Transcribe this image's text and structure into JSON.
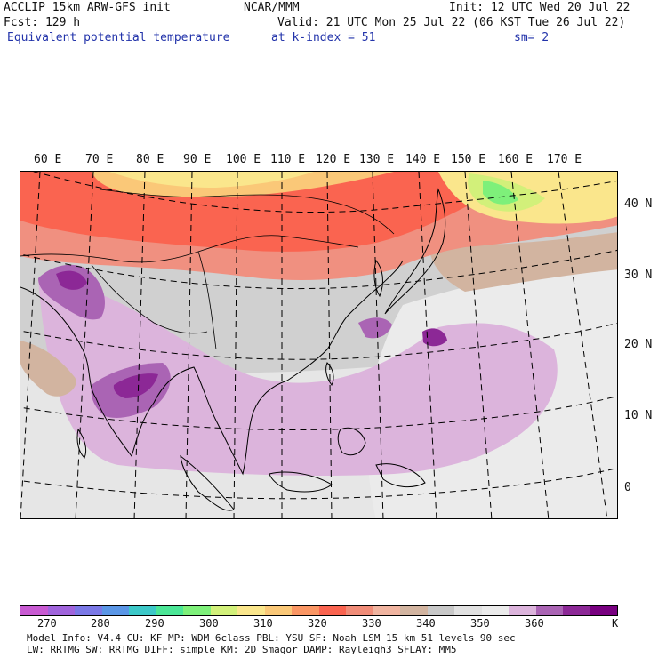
{
  "header": {
    "line1_left": "ACCLIP 15km ARW-GFS init",
    "line1_center": "NCAR/MMM",
    "line1_right": "Init: 12 UTC Wed 20 Jul 22",
    "line2_left": "Fcst:  129 h",
    "line2_right": "Valid: 21 UTC Mon 25 Jul 22 (06 KST Tue 26 Jul 22)",
    "line3_left": "Equivalent potential temperature",
    "line3_center": "at k-index =  51",
    "line3_right": "sm= 2"
  },
  "map": {
    "longitude_labels": [
      "60 E",
      "70 E",
      "80 E",
      "90 E",
      "100 E",
      "110 E",
      "120 E",
      "130 E",
      "140 E",
      "150 E",
      "160 E",
      "170 E"
    ],
    "latitude_labels": [
      "40 N",
      "30 N",
      "20 N",
      "10 N",
      "0"
    ]
  },
  "colorbar": {
    "unit": "K",
    "tick_labels": [
      "270",
      "280",
      "290",
      "300",
      "310",
      "320",
      "330",
      "340",
      "350",
      "360"
    ],
    "colors": [
      "#c85ad2",
      "#a064dc",
      "#7a78e6",
      "#5a96e6",
      "#3cc8c8",
      "#4be696",
      "#7ef07a",
      "#d2f07a",
      "#fae68c",
      "#fac878",
      "#fa9664",
      "#fa6450",
      "#f08c78",
      "#f0b4a0",
      "#d2b4a0",
      "#c8c8c8",
      "#e1e1e1",
      "#ebebeb",
      "#dcb4dc",
      "#aa64b4",
      "#8c2896",
      "#780080"
    ]
  },
  "footer": {
    "line1": "Model Info: V4.4     CU: KF       MP: WDM 6class  PBL: YSU      SF: Noah LSM    15 km   51 levels   90 sec",
    "line2": "LW: RRTMG    SW: RRTMG   DIFF: simple KM: 2D Smagor DAMP: Rayleigh3  SFLAY: MM5"
  }
}
